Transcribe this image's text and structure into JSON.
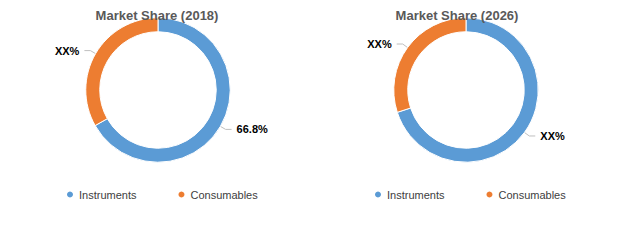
{
  "chart_data": [
    {
      "type": "pie",
      "title": "Market Share (2018)",
      "categories": [
        "Instruments",
        "Consumables"
      ],
      "values": [
        66.8,
        33.2
      ],
      "value_labels": [
        "66.8%",
        "XX%"
      ],
      "colors": [
        "#5b9bd5",
        "#ed7d31"
      ],
      "data_labels": true,
      "legend": "bottom"
    },
    {
      "type": "pie",
      "title": "Market Share (2026)",
      "categories": [
        "Instruments",
        "Consumables"
      ],
      "values": [
        70,
        30
      ],
      "value_labels": [
        "XX%",
        "XX%"
      ],
      "colors": [
        "#5b9bd5",
        "#ed7d31"
      ],
      "data_labels": true,
      "legend": "bottom"
    }
  ]
}
